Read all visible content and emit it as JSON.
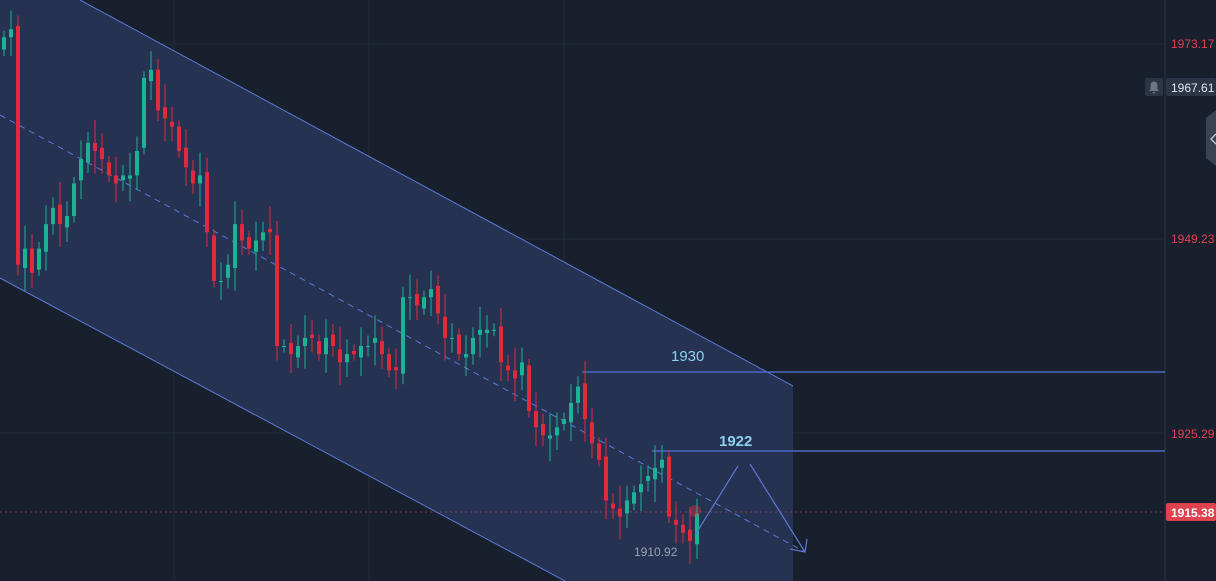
{
  "chart_data": {
    "type": "candlestick",
    "title": "",
    "y_axis": {
      "side": "right",
      "tick_labels": [
        "1973.17",
        "1949.23",
        "1925.29"
      ],
      "ticks": [
        1973.17,
        1949.23,
        1925.29
      ]
    },
    "grid": true,
    "closes": [
      1974,
      1975,
      1946,
      1948,
      1945,
      1948,
      1951,
      1953,
      1951,
      1952,
      1956,
      1959,
      1961,
      1960,
      1959,
      1957,
      1956,
      1957,
      1957,
      1960,
      1969,
      1970,
      1965,
      1964,
      1963,
      1960,
      1958,
      1956,
      1957,
      1950,
      1944,
      1944,
      1946,
      1951,
      1949,
      1948,
      1949,
      1950,
      1950,
      1936,
      1936,
      1935,
      1936,
      1937,
      1937,
      1935,
      1937,
      1936,
      1934,
      1935,
      1935,
      1936,
      1936,
      1937,
      1935,
      1933,
      1933,
      1942,
      1942,
      1941,
      1942,
      1943,
      1940,
      1937,
      1937,
      1935,
      1935,
      1937,
      1938,
      1938,
      1938,
      1934,
      1933,
      1932,
      1934,
      1928,
      1926,
      1925,
      1925,
      1926,
      1927,
      1929,
      1931,
      1927,
      1924,
      1922,
      1917,
      1916,
      1915,
      1917,
      1918,
      1919,
      1920,
      1921,
      1922,
      1915,
      1914,
      1913,
      1912,
      1915.38
    ],
    "up_color": "#1bb394",
    "down_color": "#e0293b",
    "current_price": {
      "value": 1915.38,
      "label": "1915.38",
      "color": "#e0424f"
    },
    "alert_price": {
      "label": "1967.61",
      "icon": "bell-icon"
    },
    "low_marker": {
      "label": "1910.92"
    },
    "annotations": {
      "level_high": {
        "value": 1930,
        "label": "1930"
      },
      "level_low": {
        "value": 1922,
        "label": "1922"
      },
      "channel": "descending parallel channel",
      "projection": "up to 1922 then down"
    },
    "colors": {
      "background": "#19202d",
      "channel_fill": "#283456",
      "line": "#5b78d6"
    }
  }
}
